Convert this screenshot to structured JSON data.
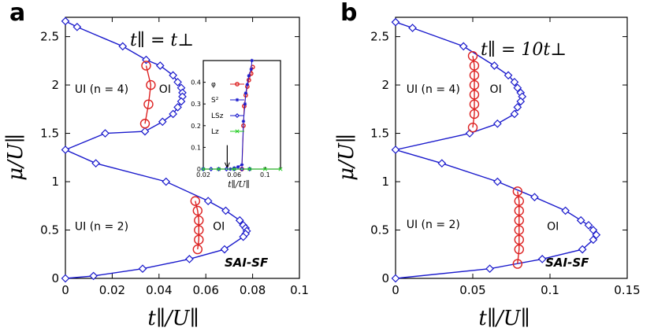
{
  "chart_data": [
    {
      "type": "line",
      "panel_label": "a",
      "annotation": "t∥ = t⊥",
      "xlabel": "t∥/U∥",
      "ylabel": "μ/U∥",
      "xlim": [
        0,
        0.1
      ],
      "ylim": [
        0,
        2.7
      ],
      "xticks": [
        "0",
        "0.02",
        "0.04",
        "0.06",
        "0.08",
        "0.1"
      ],
      "xtick_values": [
        0,
        0.02,
        0.04,
        0.06,
        0.08,
        0.1
      ],
      "yticks": [
        "0",
        "0.5",
        "1",
        "1.5",
        "2",
        "2.5"
      ],
      "ytick_values": [
        0,
        0.5,
        1,
        1.5,
        2,
        2.5
      ],
      "region_labels": [
        {
          "text": "UI (n = 4)",
          "x": 0.004,
          "y": 1.92
        },
        {
          "text": "OI",
          "x": 0.04,
          "y": 1.92
        },
        {
          "text": "UI (n = 2)",
          "x": 0.004,
          "y": 0.5
        },
        {
          "text": "OI",
          "x": 0.063,
          "y": 0.5
        },
        {
          "text": "SAI-SF",
          "x": 0.068,
          "y": 0.12,
          "bold": true
        }
      ],
      "series": [
        {
          "color": "#1a1acc",
          "marker": "diamond",
          "points": [
            [
              0,
              2.66
            ],
            [
              0.005,
              2.6
            ],
            [
              0.0245,
              2.4
            ],
            [
              0.0345,
              2.26
            ],
            [
              0.0405,
              2.2
            ],
            [
              0.046,
              2.1
            ],
            [
              0.048,
              2.03
            ],
            [
              0.0495,
              1.97
            ],
            [
              0.05,
              1.92
            ],
            [
              0.05,
              1.88
            ],
            [
              0.0495,
              1.83
            ],
            [
              0.048,
              1.77
            ],
            [
              0.046,
              1.7
            ],
            [
              0.0415,
              1.62
            ],
            [
              0.034,
              1.52
            ],
            [
              0.017,
              1.5
            ],
            [
              0,
              1.33
            ],
            [
              0.013,
              1.19
            ],
            [
              0.043,
              1.0
            ],
            [
              0.061,
              0.8
            ],
            [
              0.0685,
              0.7
            ],
            [
              0.0745,
              0.6
            ],
            [
              0.076,
              0.55
            ],
            [
              0.077,
              0.52
            ],
            [
              0.0775,
              0.49
            ],
            [
              0.077,
              0.46
            ],
            [
              0.076,
              0.43
            ],
            [
              0.068,
              0.3
            ],
            [
              0.053,
              0.2
            ],
            [
              0.033,
              0.1
            ],
            [
              0.012,
              0.025
            ],
            [
              0,
              0
            ]
          ]
        },
        {
          "color": "#dd2222",
          "marker": "circle",
          "points": [
            [
              0.0345,
              2.2
            ],
            [
              0.0365,
              2.0
            ],
            [
              0.0355,
              1.8
            ],
            [
              0.034,
              1.6
            ]
          ]
        },
        {
          "color": "#dd2222",
          "marker": "circle",
          "points": [
            [
              0.0555,
              0.8
            ],
            [
              0.0565,
              0.7
            ],
            [
              0.057,
              0.6
            ],
            [
              0.057,
              0.5
            ],
            [
              0.057,
              0.4
            ],
            [
              0.0565,
              0.3
            ]
          ]
        }
      ],
      "inset": {
        "xlabel": "t∥/U∥",
        "xlim": [
          0.02,
          0.12
        ],
        "ylim": [
          0,
          0.5
        ],
        "xticks": [
          "0.02",
          "0.06",
          "0.1"
        ],
        "xtick_values": [
          0.02,
          0.06,
          0.1
        ],
        "yticks": [
          "0",
          "0.1",
          "0.2",
          "0.3",
          "0.4"
        ],
        "ytick_values": [
          0,
          0.1,
          0.2,
          0.3,
          0.4
        ],
        "legend_position": "top-left",
        "series": [
          {
            "name": "φ",
            "color": "#dd2222",
            "marker": "circle",
            "points": [
              [
                0.07,
                0
              ],
              [
                0.072,
                0.2
              ],
              [
                0.073,
                0.29
              ],
              [
                0.075,
                0.34
              ],
              [
                0.077,
                0.38
              ],
              [
                0.079,
                0.41
              ],
              [
                0.082,
                0.44
              ],
              [
                0.084,
                0.47
              ]
            ]
          },
          {
            "name": "S²",
            "color": "#1a1acc",
            "marker": "star",
            "points": [
              [
                0.02,
                0
              ],
              [
                0.04,
                0
              ],
              [
                0.055,
                0
              ],
              [
                0.06,
                0.005
              ],
              [
                0.065,
                0.01
              ],
              [
                0.07,
                0.02
              ],
              [
                0.072,
                0.22
              ],
              [
                0.074,
                0.3
              ],
              [
                0.075,
                0.35
              ],
              [
                0.077,
                0.39
              ],
              [
                0.079,
                0.43
              ],
              [
                0.082,
                0.46
              ],
              [
                0.083,
                0.5
              ]
            ]
          },
          {
            "name": "LSz",
            "color": "#1a1acc",
            "marker": "diamond",
            "points": [
              [
                0.02,
                0
              ],
              [
                0.03,
                0
              ],
              [
                0.04,
                0
              ],
              [
                0.05,
                0
              ],
              [
                0.06,
                0
              ],
              [
                0.07,
                0
              ],
              [
                0.08,
                0
              ]
            ]
          },
          {
            "name": "Lz",
            "color": "#22cc22",
            "marker": "cross",
            "points": [
              [
                0.02,
                0
              ],
              [
                0.04,
                0
              ],
              [
                0.06,
                0
              ],
              [
                0.08,
                0
              ],
              [
                0.1,
                0
              ],
              [
                0.12,
                0
              ]
            ]
          }
        ]
      }
    },
    {
      "type": "line",
      "panel_label": "b",
      "annotation": "t∥ = 10t⊥",
      "xlabel": "t∥/U∥",
      "ylabel": "μ/U∥",
      "xlim": [
        0,
        0.15
      ],
      "ylim": [
        0,
        2.7
      ],
      "xticks": [
        "0",
        "0.05",
        "0.1",
        "0.15"
      ],
      "xtick_values": [
        0,
        0.05,
        0.1,
        0.15
      ],
      "yticks": [
        "0",
        "0.5",
        "1",
        "1.5",
        "2",
        "2.5"
      ],
      "ytick_values": [
        0,
        0.5,
        1,
        1.5,
        2,
        2.5
      ],
      "region_labels": [
        {
          "text": "UI (n = 4)",
          "x": 0.007,
          "y": 1.92
        },
        {
          "text": "OI",
          "x": 0.061,
          "y": 1.92
        },
        {
          "text": "UI (n = 2)",
          "x": 0.007,
          "y": 0.52
        },
        {
          "text": "OI",
          "x": 0.098,
          "y": 0.5
        },
        {
          "text": "SAI-SF",
          "x": 0.097,
          "y": 0.12,
          "bold": true
        }
      ],
      "series": [
        {
          "color": "#1a1acc",
          "marker": "diamond",
          "points": [
            [
              0,
              2.65
            ],
            [
              0.011,
              2.59
            ],
            [
              0.044,
              2.4
            ],
            [
              0.064,
              2.2
            ],
            [
              0.073,
              2.1
            ],
            [
              0.077,
              2.03
            ],
            [
              0.079,
              1.97
            ],
            [
              0.081,
              1.92
            ],
            [
              0.082,
              1.88
            ],
            [
              0.081,
              1.83
            ],
            [
              0.079,
              1.77
            ],
            [
              0.077,
              1.7
            ],
            [
              0.066,
              1.6
            ],
            [
              0.048,
              1.5
            ],
            [
              0,
              1.33
            ],
            [
              0.03,
              1.19
            ],
            [
              0.066,
              1.0
            ],
            [
              0.09,
              0.84
            ],
            [
              0.11,
              0.7
            ],
            [
              0.12,
              0.6
            ],
            [
              0.125,
              0.55
            ],
            [
              0.128,
              0.5
            ],
            [
              0.13,
              0.45
            ],
            [
              0.128,
              0.4
            ],
            [
              0.121,
              0.3
            ],
            [
              0.095,
              0.2
            ],
            [
              0.061,
              0.1
            ],
            [
              0,
              0
            ]
          ]
        },
        {
          "color": "#dd2222",
          "marker": "circle",
          "points": [
            [
              0.05,
              2.3
            ],
            [
              0.051,
              2.2
            ],
            [
              0.051,
              2.1
            ],
            [
              0.051,
              2.0
            ],
            [
              0.051,
              1.9
            ],
            [
              0.051,
              1.8
            ],
            [
              0.051,
              1.7
            ],
            [
              0.05,
              1.56
            ]
          ]
        },
        {
          "color": "#dd2222",
          "marker": "circle",
          "points": [
            [
              0.079,
              0.9
            ],
            [
              0.08,
              0.8
            ],
            [
              0.08,
              0.7
            ],
            [
              0.08,
              0.6
            ],
            [
              0.08,
              0.5
            ],
            [
              0.08,
              0.4
            ],
            [
              0.08,
              0.3
            ],
            [
              0.079,
              0.15
            ]
          ]
        }
      ]
    }
  ]
}
